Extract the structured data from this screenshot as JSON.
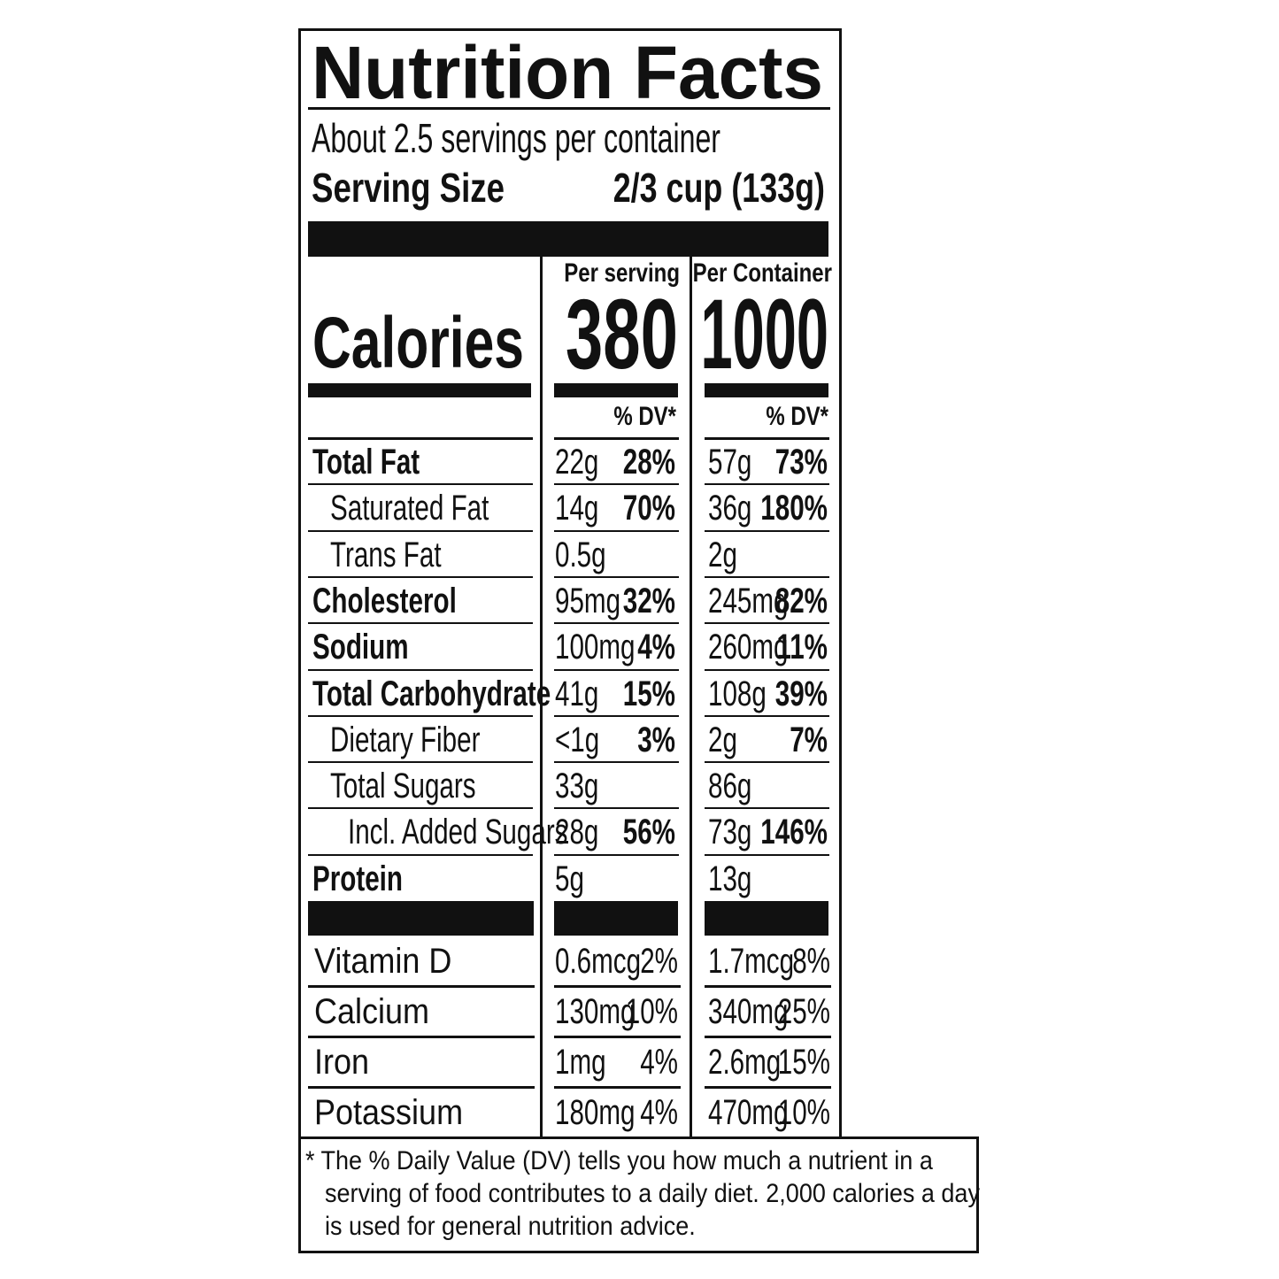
{
  "header": {
    "title": "Nutrition Facts",
    "servings": "About 2.5 servings per container",
    "serving_size_label": "Serving Size",
    "serving_size_value": "2/3 cup (133g)"
  },
  "columns": [
    "Per serving",
    "Per Container"
  ],
  "calories": {
    "label": "Calories",
    "per_serving": "380",
    "per_container": "1000"
  },
  "dv_header": "% DV*",
  "nutrients": [
    {
      "name": "Total Fat",
      "bold": true,
      "indent": 0,
      "serving": "22g",
      "serving_dv": "28%",
      "container": "57g",
      "container_dv": "73%"
    },
    {
      "name": "Saturated Fat",
      "bold": false,
      "indent": 1,
      "serving": "14g",
      "serving_dv": "70%",
      "container": "36g",
      "container_dv": "180%"
    },
    {
      "name": "Trans Fat",
      "bold": false,
      "indent": 1,
      "serving": "0.5g",
      "container": "2g"
    },
    {
      "name": "Cholesterol",
      "bold": true,
      "indent": 0,
      "serving": "95mg",
      "serving_dv": "32%",
      "container": "245mg",
      "container_dv": "82%"
    },
    {
      "name": "Sodium",
      "bold": true,
      "indent": 0,
      "serving": "100mg",
      "serving_dv": "4%",
      "container": "260mg",
      "container_dv": "11%"
    },
    {
      "name": "Total Carbohydrate",
      "bold": true,
      "indent": 0,
      "serving": "41g",
      "serving_dv": "15%",
      "container": "108g",
      "container_dv": "39%"
    },
    {
      "name": "Dietary Fiber",
      "bold": false,
      "indent": 1,
      "serving": "<1g",
      "serving_dv": "3%",
      "container": "2g",
      "container_dv": "7%"
    },
    {
      "name": "Total Sugars",
      "bold": false,
      "indent": 1,
      "serving": "33g",
      "container": "86g"
    },
    {
      "name": "Incl. Added Sugars",
      "bold": false,
      "indent": 2,
      "serving": "28g",
      "serving_dv": "56%",
      "container": "73g",
      "container_dv": "146%"
    },
    {
      "name": "Protein",
      "bold": true,
      "indent": 0,
      "serving": "5g",
      "container": "13g"
    }
  ],
  "vitamins": [
    {
      "name": "Vitamin D",
      "serving": "0.6mcg",
      "serving_dv": "2%",
      "container": "1.7mcg",
      "container_dv": "8%"
    },
    {
      "name": "Calcium",
      "serving": "130mg",
      "serving_dv": "10%",
      "container": "340mg",
      "container_dv": "25%"
    },
    {
      "name": "Iron",
      "serving": "1mg",
      "serving_dv": "4%",
      "container": "2.6mg",
      "container_dv": "15%"
    },
    {
      "name": "Potassium",
      "serving": "180mg",
      "serving_dv": "4%",
      "container": "470mg",
      "container_dv": "10%"
    }
  ],
  "footnote": [
    "* The % Daily Value (DV) tells you how much a nutrient in a",
    "serving of food contributes to a daily diet. 2,000 calories a day",
    "is used for general nutrition advice."
  ]
}
